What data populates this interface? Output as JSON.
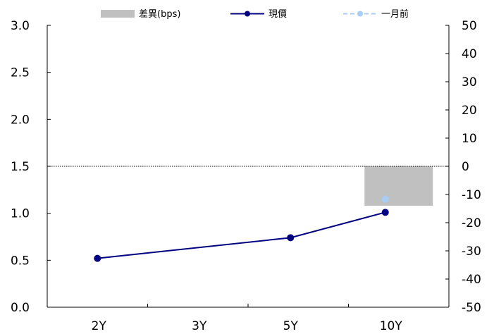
{
  "chart_data": {
    "type": "bar+line",
    "categories": [
      "2Y",
      "3Y",
      "5Y",
      "10Y"
    ],
    "left_axis": {
      "ylim": [
        0,
        3.0
      ],
      "ticks": [
        "0.0",
        "0.5",
        "1.0",
        "1.5",
        "2.0",
        "2.5",
        "3.0"
      ]
    },
    "right_axis": {
      "ylim": [
        -50,
        50
      ],
      "ticks": [
        "-50",
        "-40",
        "-30",
        "-20",
        "-10",
        "0",
        "10",
        "20",
        "30",
        "40",
        "50"
      ]
    },
    "series": [
      {
        "name": "差異(bps)",
        "type": "bar",
        "axis": "right",
        "color": "#c0c0c0",
        "points": [
          {
            "category": "10Y",
            "value": -14
          }
        ]
      },
      {
        "name": "現價",
        "type": "line",
        "axis": "left",
        "color": "#000080",
        "points": [
          {
            "category": "2Y",
            "value": 0.52
          },
          {
            "category": "5Y",
            "value": 0.74
          },
          {
            "category": "10Y",
            "value": 1.01
          }
        ]
      },
      {
        "name": "一月前",
        "type": "line-dashed",
        "axis": "left",
        "color": "#a9cdf5",
        "points": [
          {
            "category": "10Y",
            "value": 1.15
          }
        ]
      }
    ],
    "legend": {
      "placement": "top"
    },
    "grid": false
  }
}
